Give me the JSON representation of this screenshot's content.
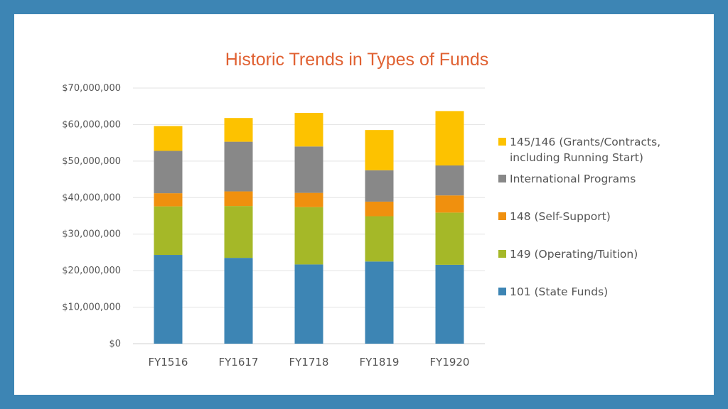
{
  "chart_data": {
    "type": "bar",
    "stacked": true,
    "title": "Historic Trends in Types of Funds",
    "categories": [
      "FY1516",
      "FY1617",
      "FY1718",
      "FY1819",
      "FY1920"
    ],
    "ylim": [
      0,
      70000000
    ],
    "yticks": [
      "$0",
      "$10,000,000",
      "$20,000,000",
      "$30,000,000",
      "$40,000,000",
      "$50,000,000",
      "$60,000,000",
      "$70,000,000"
    ],
    "ytick_values": [
      0,
      10000000,
      20000000,
      30000000,
      40000000,
      50000000,
      60000000,
      70000000
    ],
    "grid": true,
    "legend_position": "right",
    "series": [
      {
        "name": "101 (State Funds)",
        "color": "#3d85b4",
        "values": [
          24300000,
          23500000,
          21700000,
          22500000,
          21600000
        ]
      },
      {
        "name": "149 (Operating/Tuition)",
        "color": "#a5b828",
        "values": [
          13300000,
          14200000,
          15700000,
          12400000,
          14300000
        ]
      },
      {
        "name": "148 (Self-Support)",
        "color": "#f0900e",
        "values": [
          3600000,
          4000000,
          3900000,
          4000000,
          4700000
        ]
      },
      {
        "name": "International Programs",
        "color": "#888888",
        "values": [
          11600000,
          13600000,
          12700000,
          8600000,
          8200000
        ]
      },
      {
        "name": "145/146 (Grants/Contracts, including Running Start)",
        "legend_lines": [
          "145/146 (Grants/Contracts,",
          "including Running Start)"
        ],
        "color": "#fdc200",
        "values": [
          6800000,
          6500000,
          9200000,
          11000000,
          14900000
        ]
      }
    ]
  }
}
